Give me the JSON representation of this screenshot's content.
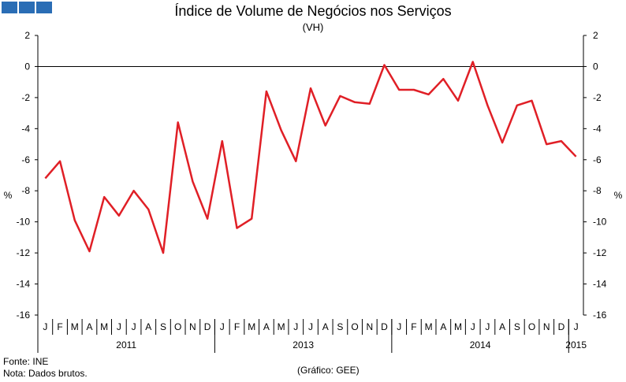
{
  "logo": {
    "icon": "gee-logo-icon",
    "color": "#2a6db5"
  },
  "chart_data": {
    "type": "line",
    "title": "Índice de Volume de Negócios nos Serviços",
    "subtitle": "(VH)",
    "ylabel_left": "%",
    "ylabel_right": "%",
    "ylim": [
      -16,
      2
    ],
    "yticks": [
      2,
      0,
      -2,
      -4,
      -6,
      -8,
      -10,
      -12,
      -14,
      -16
    ],
    "grid": false,
    "x": [
      "J",
      "F",
      "M",
      "A",
      "M",
      "J",
      "J",
      "A",
      "S",
      "O",
      "N",
      "D",
      "J",
      "F",
      "M",
      "A",
      "M",
      "J",
      "J",
      "A",
      "S",
      "O",
      "N",
      "D",
      "J",
      "F",
      "M",
      "A",
      "M",
      "J",
      "J",
      "A",
      "S",
      "O",
      "N",
      "D",
      "J"
    ],
    "year_labels": [
      {
        "label": "2011",
        "first_index": 0,
        "last_index": 11
      },
      {
        "label": "2013",
        "first_index": 12,
        "last_index": 23
      },
      {
        "label": "2014",
        "first_index": 24,
        "last_index": 35
      },
      {
        "label": "2015",
        "first_index": 36,
        "last_index": 36
      }
    ],
    "series": [
      {
        "name": "VH",
        "color": "#e01f26",
        "values": [
          -7.2,
          -6.1,
          -9.9,
          -11.9,
          -8.4,
          -9.6,
          -8.0,
          -9.2,
          -12.0,
          -3.6,
          -7.4,
          -9.8,
          -4.8,
          -10.4,
          -9.8,
          -1.6,
          -4.1,
          -6.1,
          -1.4,
          -3.8,
          -1.9,
          -2.3,
          -2.4,
          0.1,
          -1.5,
          -1.5,
          -1.8,
          -0.8,
          -2.2,
          0.3,
          -2.5,
          -4.9,
          -2.5,
          -2.2,
          -5.0,
          -4.8,
          -5.8
        ]
      }
    ]
  },
  "footer": {
    "source": "Fonte: INE",
    "note": "Nota: Dados brutos.",
    "credit": "(Gráfico: GEE)"
  }
}
